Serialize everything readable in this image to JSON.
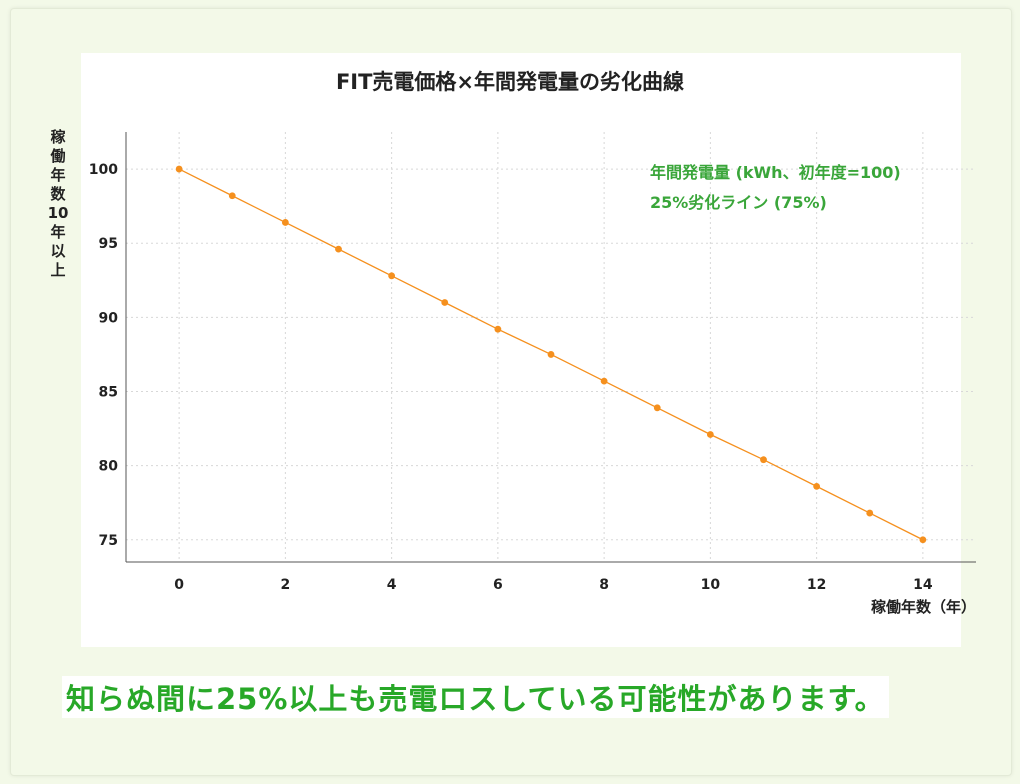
{
  "chart_data": {
    "type": "line",
    "title": "FIT売電価格×年間発電量の劣化曲線",
    "xlabel": "稼働年数（年）",
    "ylabel": "稼働年数10年以上",
    "x": [
      0,
      1,
      2,
      3,
      4,
      5,
      6,
      7,
      8,
      9,
      10,
      11,
      12,
      13,
      14
    ],
    "series": [
      {
        "name": "年間発電量 (kWh、初年度=100)",
        "values": [
          100,
          98.2,
          96.4,
          94.6,
          92.8,
          91.0,
          89.2,
          87.5,
          85.7,
          83.9,
          82.1,
          80.4,
          78.6,
          76.8,
          75.0
        ],
        "color": "#f5901e"
      }
    ],
    "reference_line": {
      "name": "25%劣化ライン (75%)",
      "value": 75
    },
    "xlim": [
      -1,
      15
    ],
    "ylim": [
      73.5,
      102.5
    ],
    "x_ticks": [
      0,
      2,
      4,
      6,
      8,
      10,
      12,
      14
    ],
    "y_ticks": [
      75,
      80,
      85,
      90,
      95,
      100
    ],
    "grid": true,
    "legend_position": "top-right"
  },
  "footer_text": "知らぬ間に25%以上も売電ロスしている可能性があります。",
  "colors": {
    "line": "#f5901e",
    "legend_text": "#3aa63a",
    "footer_text": "#28a828",
    "background": "#f3f9e8"
  }
}
